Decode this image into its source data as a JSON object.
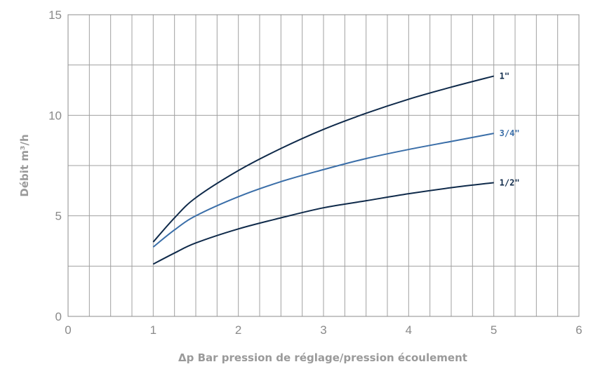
{
  "chart_data": {
    "type": "line",
    "xlabel": "Δp Bar pression de réglage/pression écoulement",
    "ylabel": "Débit m³/h",
    "xlim": [
      0,
      6
    ],
    "ylim": [
      0,
      15
    ],
    "x_ticks": [
      "0",
      "1",
      "2",
      "3",
      "4",
      "5",
      "6"
    ],
    "y_ticks": [
      "0",
      "5",
      "10",
      "15"
    ],
    "grid": true,
    "series": [
      {
        "name": "1\"",
        "color": "#0f2a4a",
        "x": [
          1,
          1.25,
          1.5,
          2,
          2.5,
          3,
          3.5,
          4,
          4.5,
          5
        ],
        "y": [
          3.7,
          4.9,
          5.9,
          7.25,
          8.35,
          9.3,
          10.1,
          10.8,
          11.4,
          11.95
        ]
      },
      {
        "name": "3/4\"",
        "color": "#3a6ea8",
        "x": [
          1,
          1.25,
          1.5,
          2,
          2.5,
          3,
          3.5,
          4,
          4.5,
          5
        ],
        "y": [
          3.45,
          4.3,
          5.0,
          5.95,
          6.7,
          7.3,
          7.85,
          8.3,
          8.7,
          9.1
        ]
      },
      {
        "name": "1/2\"",
        "color": "#0f2a4a",
        "x": [
          1,
          1.25,
          1.5,
          2,
          2.5,
          3,
          3.5,
          4,
          4.5,
          5
        ],
        "y": [
          2.6,
          3.15,
          3.65,
          4.35,
          4.9,
          5.4,
          5.75,
          6.1,
          6.4,
          6.65
        ]
      }
    ]
  }
}
